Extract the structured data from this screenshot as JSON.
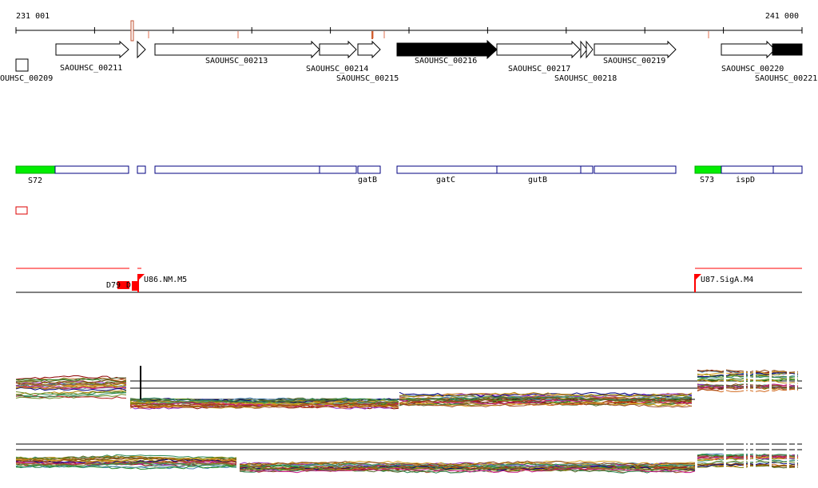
{
  "ruler": {
    "start_label": "231 001",
    "end_label": "241 000"
  },
  "genes": [
    {
      "name": "OUHSC_00209",
      "strand": "none",
      "style": "box"
    },
    {
      "name": "SAOUHSC_00211",
      "strand": "+",
      "style": "open"
    },
    {
      "name": "",
      "strand": "+",
      "style": "open"
    },
    {
      "name": "SAOUHSC_00213",
      "strand": "+",
      "style": "open"
    },
    {
      "name": "SAOUHSC_00214",
      "strand": "+",
      "style": "open"
    },
    {
      "name": "SAOUHSC_00215",
      "strand": "+",
      "style": "open"
    },
    {
      "name": "SAOUHSC_00216",
      "strand": "+",
      "style": "filled"
    },
    {
      "name": "SAOUHSC_00217",
      "strand": "+",
      "style": "open"
    },
    {
      "name": "SAOUHSC_00218",
      "strand": "+",
      "style": "open"
    },
    {
      "name": "SAOUHSC_00219",
      "strand": "+",
      "style": "open"
    },
    {
      "name": "SAOUHSC_00220",
      "strand": "+",
      "style": "open"
    },
    {
      "name": "SAOUHSC_00221",
      "strand": "+",
      "style": "filled"
    }
  ],
  "operons": [
    {
      "label": "S72",
      "kind": "promoter"
    },
    {
      "label": "",
      "kind": "gene"
    },
    {
      "label": "",
      "kind": "gene"
    },
    {
      "label": "",
      "kind": "gene"
    },
    {
      "label": "",
      "kind": "gene"
    },
    {
      "label": "gatB",
      "kind": "gene"
    },
    {
      "label": "gatC",
      "kind": "gene"
    },
    {
      "label": "gutB",
      "kind": "gene"
    },
    {
      "label": "",
      "kind": "gene"
    },
    {
      "label": "",
      "kind": "gene"
    },
    {
      "label": "S73",
      "kind": "promoter"
    },
    {
      "label": "ispD",
      "kind": "gene"
    },
    {
      "label": "",
      "kind": "gene"
    }
  ],
  "features": [
    {
      "label": "D79",
      "suffix": "D"
    },
    {
      "label": "U86.NM.M5",
      "suffix": ""
    },
    {
      "label": "U87.SigA.M4",
      "suffix": ""
    }
  ],
  "colors": {
    "promoter": "#00ee00",
    "operon_outline": "#000080",
    "gene_fill": "#000000",
    "feature_red": "#ff0000",
    "marker_red": "#d06030"
  },
  "expression_tracks": [
    {
      "name": "expression-profile-top"
    },
    {
      "name": "expression-profile-bottom"
    }
  ]
}
